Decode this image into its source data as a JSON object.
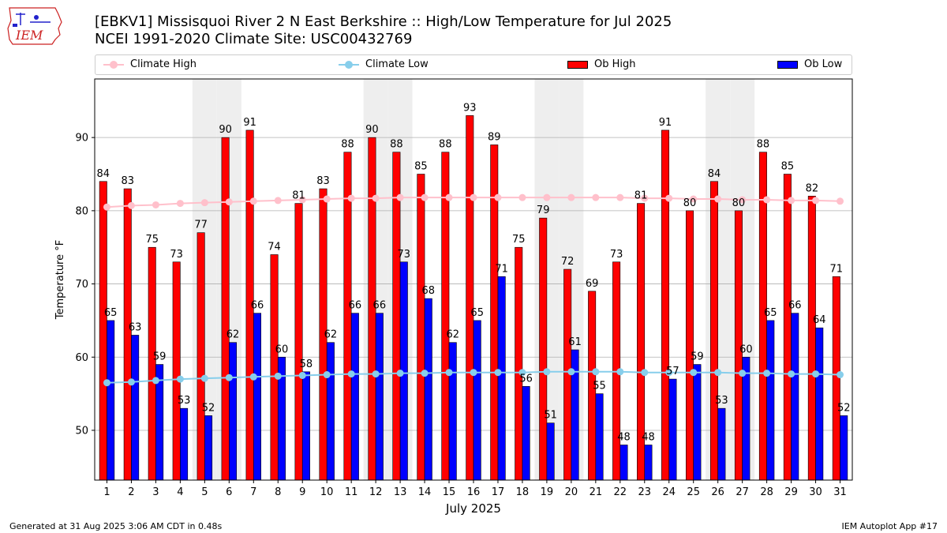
{
  "header": {
    "logo_text": "IEM",
    "title_line1": "[EBKV1] Missisquoi River 2 N East Berkshire :: High/Low Temperature for Jul 2025",
    "title_line2": "NCEI 1991-2020 Climate Site: USC00432769"
  },
  "legend": {
    "climate_high": "Climate High",
    "climate_low": "Climate Low",
    "ob_high": "Ob High",
    "ob_low": "Ob Low"
  },
  "footer": {
    "generated": "Generated at 31 Aug 2025 3:06 AM CDT in 0.48s",
    "app": "IEM Autoplot App #17"
  },
  "colors": {
    "ob_high": "#ff0000",
    "ob_low": "#0000ff",
    "climate_high": "#ffc0cb",
    "climate_low": "#87ceeb",
    "weekend_shade": "#eeeeee",
    "grid": "#b0b0b0"
  },
  "chart_data": {
    "type": "bar",
    "xlabel": "July 2025",
    "ylabel": "Temperature °F",
    "ylim": [
      43.2,
      98
    ],
    "yticks": [
      50,
      60,
      70,
      80,
      90
    ],
    "grid": "horizontal",
    "legend_position": "top",
    "categories": [
      "1",
      "2",
      "3",
      "4",
      "5",
      "6",
      "7",
      "8",
      "9",
      "10",
      "11",
      "12",
      "13",
      "14",
      "15",
      "16",
      "17",
      "18",
      "19",
      "20",
      "21",
      "22",
      "23",
      "24",
      "25",
      "26",
      "27",
      "28",
      "29",
      "30",
      "31"
    ],
    "shaded_days": [
      5,
      6,
      12,
      13,
      19,
      20,
      26,
      27
    ],
    "series": [
      {
        "name": "Ob High",
        "type": "bar",
        "values": [
          84,
          83,
          75,
          73,
          77,
          90,
          91,
          74,
          81,
          83,
          88,
          90,
          88,
          85,
          88,
          93,
          89,
          75,
          79,
          72,
          69,
          73,
          81,
          91,
          80,
          84,
          80,
          88,
          85,
          82,
          71
        ]
      },
      {
        "name": "Ob Low",
        "type": "bar",
        "values": [
          65,
          63,
          59,
          53,
          52,
          62,
          66,
          60,
          58,
          62,
          66,
          66,
          73,
          68,
          62,
          65,
          71,
          56,
          51,
          61,
          55,
          48,
          48,
          57,
          59,
          53,
          60,
          65,
          66,
          64,
          52
        ]
      },
      {
        "name": "Climate High",
        "type": "line",
        "values": [
          80.5,
          80.7,
          80.8,
          81.0,
          81.1,
          81.2,
          81.3,
          81.4,
          81.5,
          81.6,
          81.7,
          81.7,
          81.8,
          81.8,
          81.8,
          81.8,
          81.8,
          81.8,
          81.8,
          81.8,
          81.8,
          81.8,
          81.7,
          81.7,
          81.6,
          81.6,
          81.5,
          81.5,
          81.4,
          81.4,
          81.3
        ]
      },
      {
        "name": "Climate Low",
        "type": "line",
        "values": [
          56.5,
          56.6,
          56.8,
          57.0,
          57.1,
          57.2,
          57.3,
          57.4,
          57.5,
          57.6,
          57.7,
          57.7,
          57.8,
          57.8,
          57.9,
          57.9,
          57.9,
          57.9,
          58.0,
          58.0,
          58.0,
          58.0,
          57.9,
          57.9,
          57.9,
          57.9,
          57.8,
          57.8,
          57.7,
          57.7,
          57.6
        ]
      }
    ]
  }
}
